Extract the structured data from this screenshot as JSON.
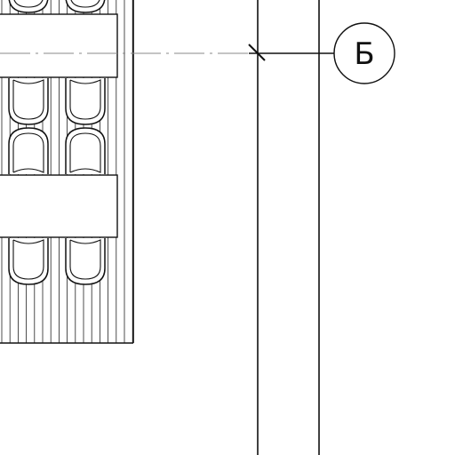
{
  "drawing": {
    "grid_axis_marker": "Б",
    "line_color": "#111111",
    "gridline_color": "#8a8a8a",
    "background_color": "#ffffff"
  }
}
